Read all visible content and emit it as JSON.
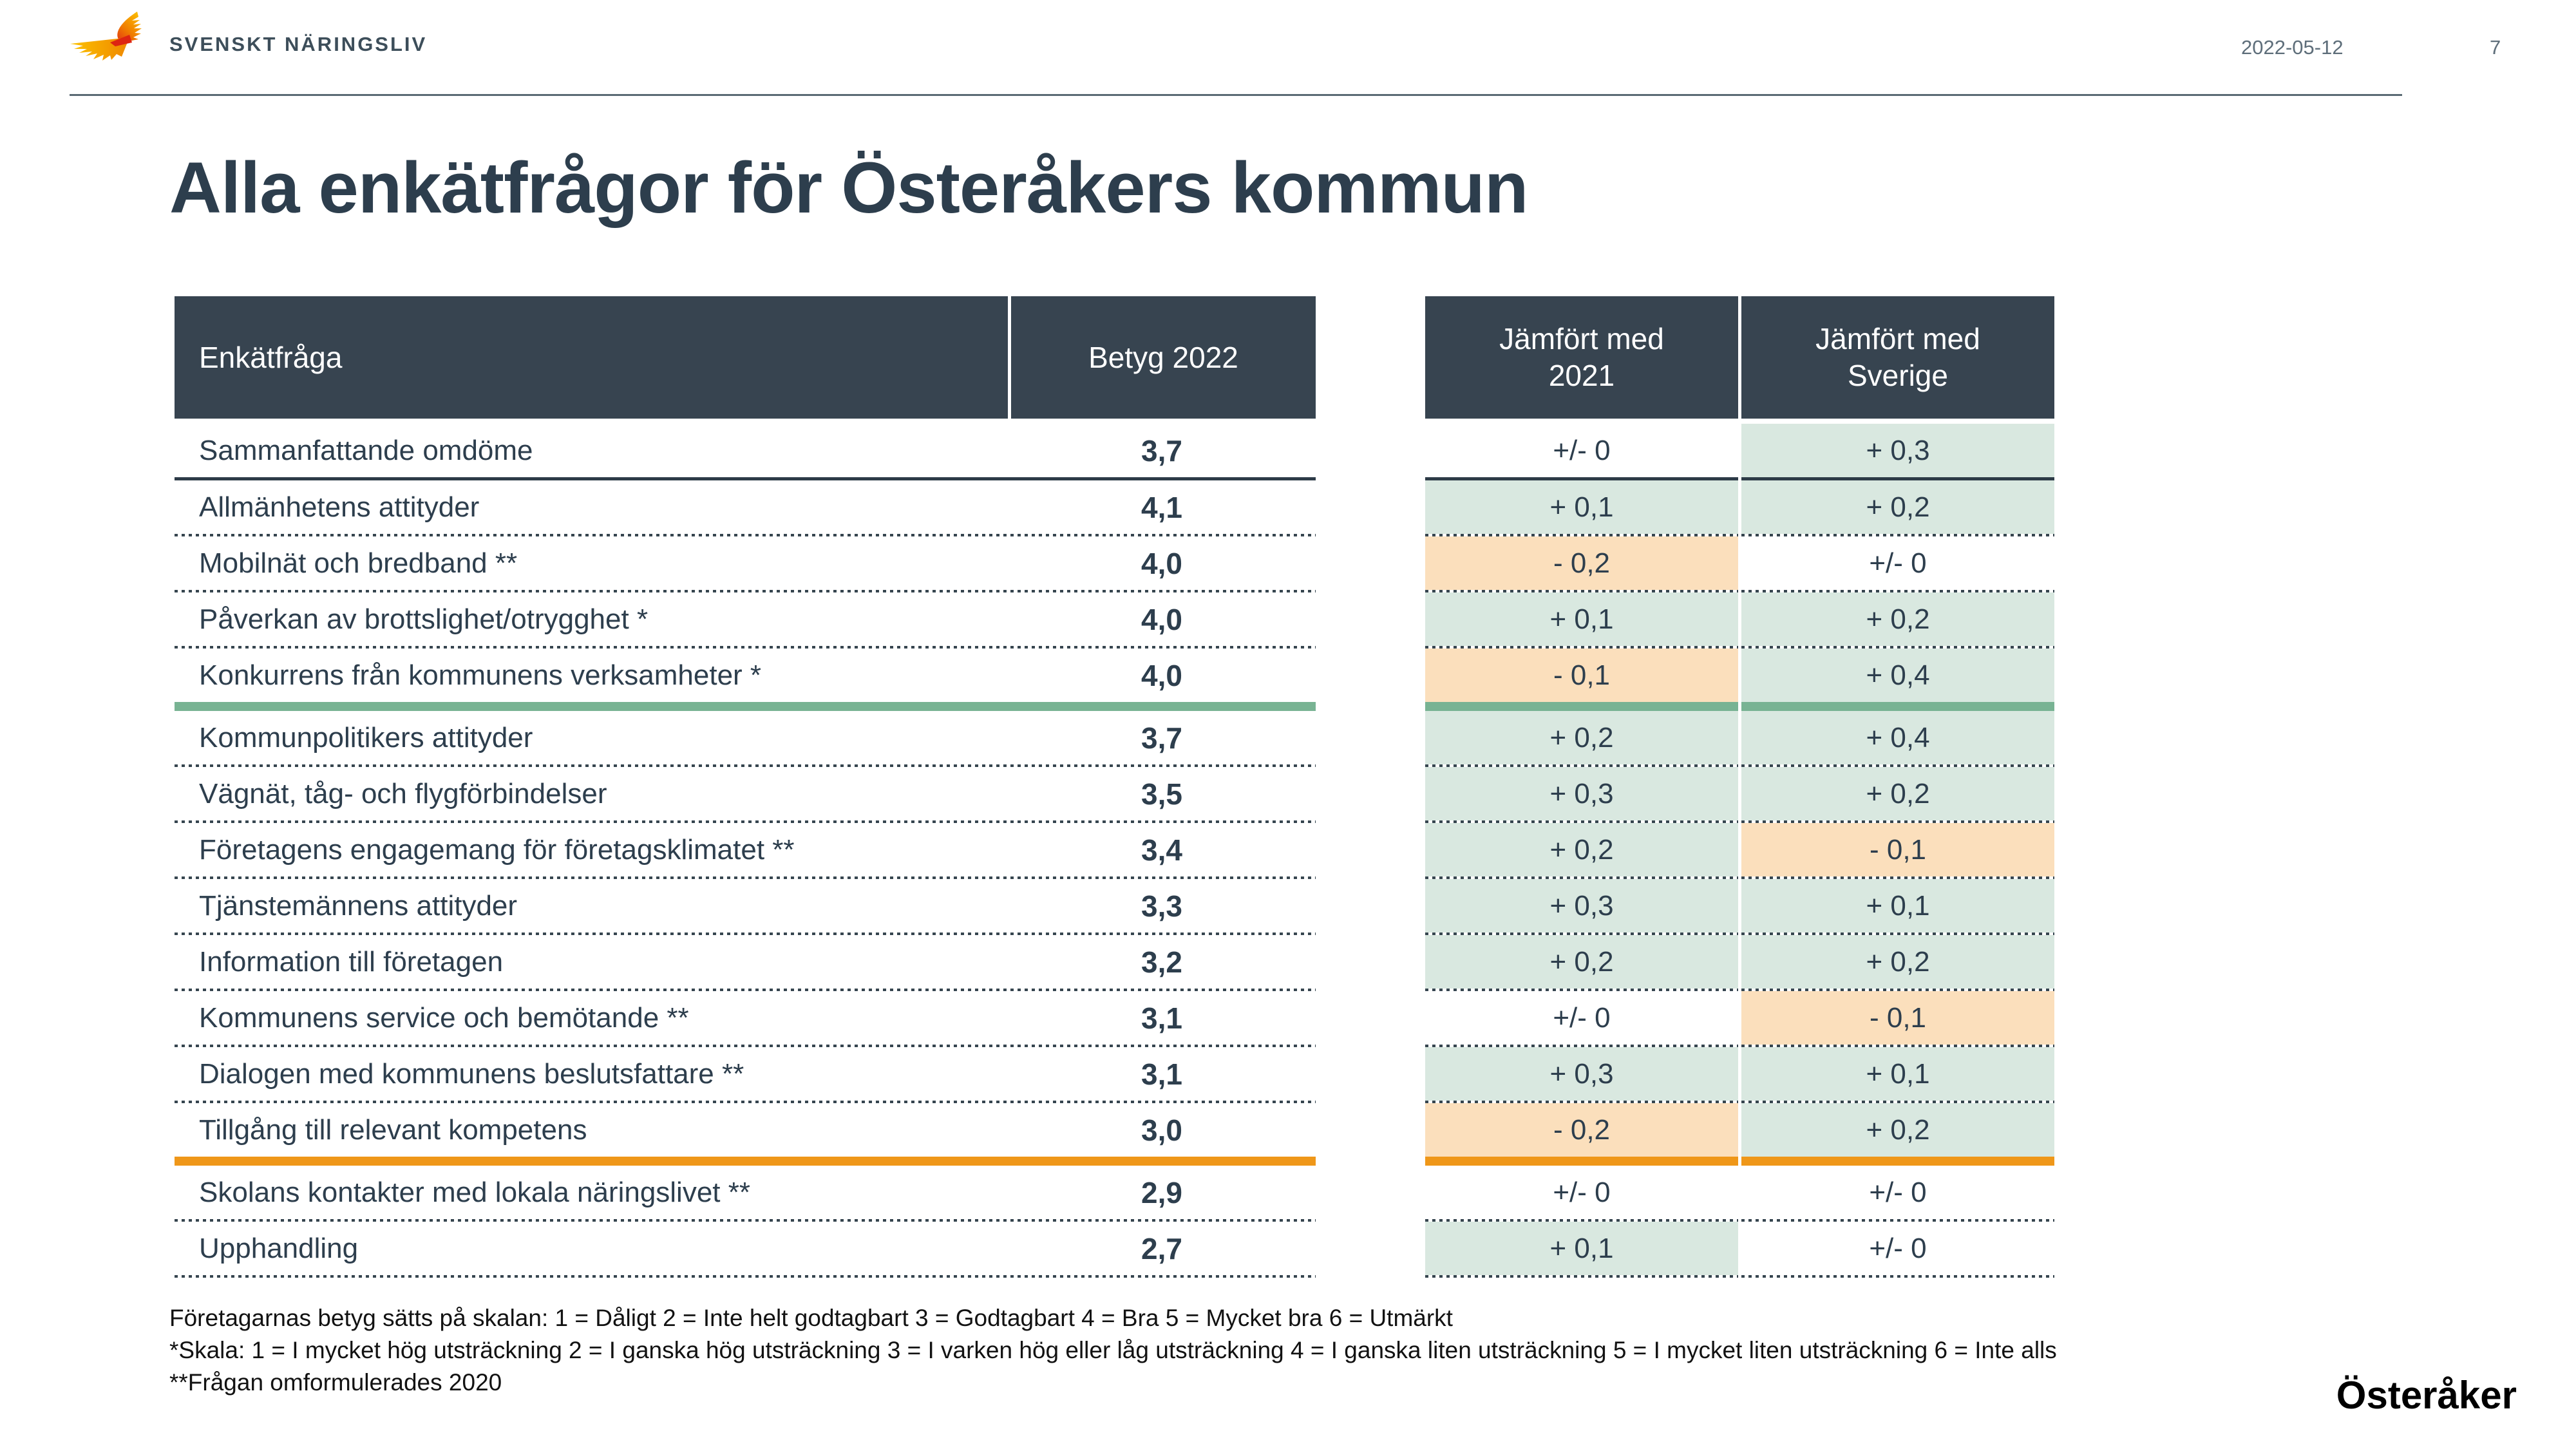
{
  "header": {
    "logo_text": "SVENSKT NÄRINGSLIV",
    "date": "2022-05-12",
    "page_number": "7"
  },
  "title": "Alla enkätfrågor för Österåkers kommun",
  "left_table": {
    "col1_header": "Enkätfråga",
    "col2_header": "Betyg 2022"
  },
  "right_table": {
    "col1_header": "Jämfört med\n2021",
    "col2_header": "Jämfört med\nSverige"
  },
  "rows": [
    {
      "question": "Sammanfattande omdöme",
      "betyg": "3,7",
      "vs_2021": "+/- 0",
      "vs_2021_bg": "none",
      "vs_sverige": "+ 0,3",
      "vs_sverige_bg": "green",
      "separator_after": "solid"
    },
    {
      "question": "Allmänhetens attityder",
      "betyg": "4,1",
      "vs_2021": "+ 0,1",
      "vs_2021_bg": "green",
      "vs_sverige": "+ 0,2",
      "vs_sverige_bg": "green",
      "separator_after": "dotted"
    },
    {
      "question": "Mobilnät och bredband **",
      "betyg": "4,0",
      "vs_2021": "- 0,2",
      "vs_2021_bg": "orange",
      "vs_sverige": "+/- 0",
      "vs_sverige_bg": "none",
      "separator_after": "dotted"
    },
    {
      "question": "Påverkan av brottslighet/otrygghet *",
      "betyg": "4,0",
      "vs_2021": "+ 0,1",
      "vs_2021_bg": "green",
      "vs_sverige": "+ 0,2",
      "vs_sverige_bg": "green",
      "separator_after": "dotted"
    },
    {
      "question": "Konkurrens från kommunens verksamheter *",
      "betyg": "4,0",
      "vs_2021": "- 0,1",
      "vs_2021_bg": "orange",
      "vs_sverige": "+ 0,4",
      "vs_sverige_bg": "green",
      "separator_after": "green-bar"
    },
    {
      "question": "Kommunpolitikers attityder",
      "betyg": "3,7",
      "vs_2021": "+ 0,2",
      "vs_2021_bg": "green",
      "vs_sverige": "+ 0,4",
      "vs_sverige_bg": "green",
      "separator_after": "dotted"
    },
    {
      "question": "Vägnät, tåg- och flygförbindelser",
      "betyg": "3,5",
      "vs_2021": "+ 0,3",
      "vs_2021_bg": "green",
      "vs_sverige": "+ 0,2",
      "vs_sverige_bg": "green",
      "separator_after": "dotted"
    },
    {
      "question": "Företagens engagemang för företagsklimatet **",
      "betyg": "3,4",
      "vs_2021": "+ 0,2",
      "vs_2021_bg": "green",
      "vs_sverige": "- 0,1",
      "vs_sverige_bg": "orange",
      "separator_after": "dotted"
    },
    {
      "question": "Tjänstemännens attityder",
      "betyg": "3,3",
      "vs_2021": "+ 0,3",
      "vs_2021_bg": "green",
      "vs_sverige": "+ 0,1",
      "vs_sverige_bg": "green",
      "separator_after": "dotted"
    },
    {
      "question": "Information till företagen",
      "betyg": "3,2",
      "vs_2021": "+ 0,2",
      "vs_2021_bg": "green",
      "vs_sverige": "+ 0,2",
      "vs_sverige_bg": "green",
      "separator_after": "dotted"
    },
    {
      "question": "Kommunens service och bemötande **",
      "betyg": "3,1",
      "vs_2021": "+/- 0",
      "vs_2021_bg": "none",
      "vs_sverige": "- 0,1",
      "vs_sverige_bg": "orange",
      "separator_after": "dotted"
    },
    {
      "question": "Dialogen med kommunens beslutsfattare **",
      "betyg": "3,1",
      "vs_2021": "+ 0,3",
      "vs_2021_bg": "green",
      "vs_sverige": "+ 0,1",
      "vs_sverige_bg": "green",
      "separator_after": "dotted"
    },
    {
      "question": "Tillgång till relevant kompetens",
      "betyg": "3,0",
      "vs_2021": "- 0,2",
      "vs_2021_bg": "orange",
      "vs_sverige": "+ 0,2",
      "vs_sverige_bg": "green",
      "separator_after": "orange-bar"
    },
    {
      "question": "Skolans kontakter med lokala näringslivet **",
      "betyg": "2,9",
      "vs_2021": "+/- 0",
      "vs_2021_bg": "none",
      "vs_sverige": "+/- 0",
      "vs_sverige_bg": "none",
      "separator_after": "dotted"
    },
    {
      "question": "Upphandling",
      "betyg": "2,7",
      "vs_2021": "+ 0,1",
      "vs_2021_bg": "green",
      "vs_sverige": "+/- 0",
      "vs_sverige_bg": "none",
      "separator_after": "dotted"
    }
  ],
  "footnotes": [
    "Företagarnas betyg sätts på skalan: 1 = Dåligt 2 = Inte helt godtagbart 3 = Godtagbart 4 = Bra 5 = Mycket bra 6 = Utmärkt",
    "*Skala: 1 = I mycket hög utsträckning 2 = I ganska hög utsträckning 3 = I varken hög eller låg utsträckning 4 = I ganska liten utsträckning 5 = I mycket liten utsträckning 6 = Inte alls",
    "**Frågan omformulerades 2020"
  ],
  "footer_logo": "Österåker",
  "colors": {
    "header_cell_bg": "#374450",
    "text_slate": "#2d3e4d",
    "positive_cell_bg": "#d9e8e0",
    "negative_cell_bg": "#fbdfbc",
    "green_threshold_bar": "#78b393",
    "orange_threshold_bar": "#ef9719",
    "logo_orange": "#f59a00",
    "logo_red": "#dd2512"
  }
}
